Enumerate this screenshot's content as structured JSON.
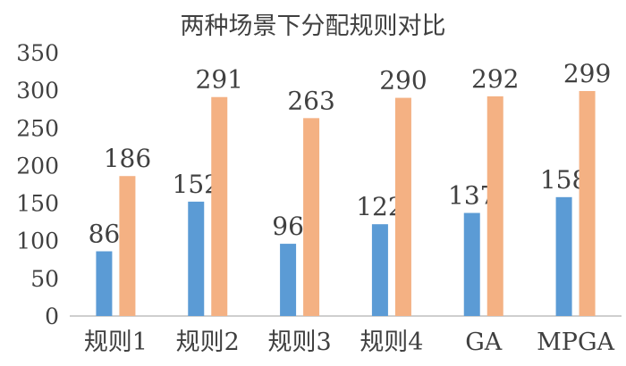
{
  "chart_data": {
    "type": "bar",
    "title": "两种场景下分配规则对比",
    "categories": [
      "规则1",
      "规则2",
      "规则3",
      "规则4",
      "GA",
      "MPGA"
    ],
    "series": [
      {
        "values": [
          86,
          152,
          96,
          122,
          137,
          158
        ],
        "color": "#5b9bd5"
      },
      {
        "values": [
          186,
          291,
          263,
          290,
          292,
          299
        ],
        "color": "#f4b183"
      }
    ],
    "ylim": [
      0,
      350
    ],
    "yticks": [
      0,
      50,
      100,
      150,
      200,
      250,
      300,
      350
    ],
    "xlabel": "",
    "ylabel": "",
    "grid": false,
    "legend": "none",
    "data_labels": true
  }
}
